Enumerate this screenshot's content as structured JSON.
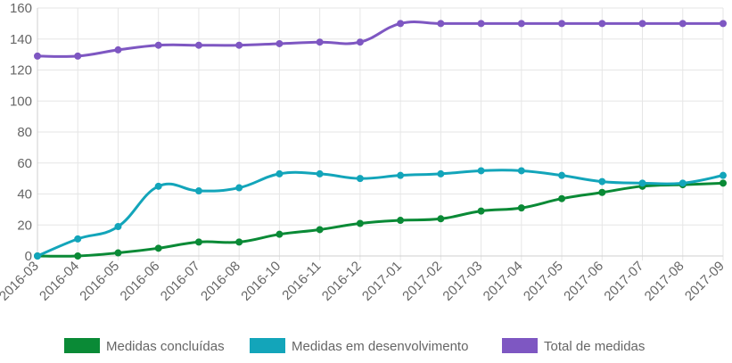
{
  "chart_data": {
    "type": "line",
    "categories": [
      "2016-03",
      "2016-04",
      "2016-05",
      "2016-06",
      "2016-07",
      "2016-08",
      "2016-10",
      "2016-11",
      "2016-12",
      "2017-01",
      "2017-02",
      "2017-03",
      "2017-04",
      "2017-05",
      "2017-06",
      "2017-07",
      "2017-08",
      "2017-09"
    ],
    "series": [
      {
        "name": "Medidas concluídas",
        "color": "#0a8a36",
        "values": [
          0,
          0,
          2,
          5,
          9,
          9,
          14,
          17,
          21,
          23,
          24,
          29,
          31,
          37,
          41,
          45,
          46,
          47
        ]
      },
      {
        "name": "Medidas em desenvolvimento",
        "color": "#13a5ba",
        "values": [
          0,
          11,
          19,
          45,
          42,
          44,
          53,
          53,
          50,
          52,
          53,
          55,
          55,
          52,
          48,
          47,
          47,
          52
        ]
      },
      {
        "name": "Total de medidas",
        "color": "#7e57c2",
        "values": [
          129,
          129,
          133,
          136,
          136,
          136,
          137,
          138,
          138,
          150,
          150,
          150,
          150,
          150,
          150,
          150,
          150,
          150
        ]
      }
    ],
    "yticks": [
      "0",
      "20",
      "40",
      "60",
      "80",
      "100",
      "120",
      "140",
      "160"
    ],
    "ylim": [
      0,
      160
    ],
    "grid": true,
    "legend_position": "bottom"
  }
}
